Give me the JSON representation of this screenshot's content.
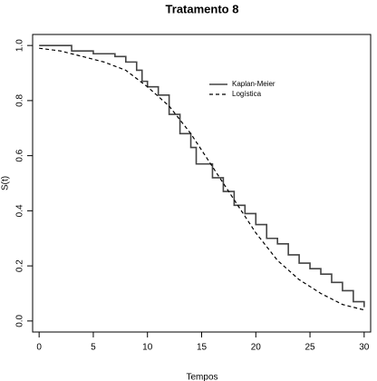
{
  "chart_data": {
    "type": "line",
    "title": "Tratamento 8",
    "x_label": "Tempos",
    "y_label": "S(t)",
    "xlim": [
      -0.6,
      30.6
    ],
    "ylim": [
      -0.04,
      1.04
    ],
    "xticks": [
      0,
      5,
      10,
      15,
      20,
      25,
      30
    ],
    "yticks": [
      {
        "value": 0,
        "label": "0.0"
      },
      {
        "value": 0.2,
        "label": "0.2"
      },
      {
        "value": 0.4,
        "label": "0.4"
      },
      {
        "value": 0.6,
        "label": "0.6"
      },
      {
        "value": 0.8,
        "label": "0.8"
      },
      {
        "value": 1,
        "label": "1.0"
      }
    ],
    "series": [
      {
        "name": "Kaplan-Meier",
        "color": "#444444",
        "style": "step",
        "x": [
          0,
          3,
          5,
          7,
          8,
          9,
          9.5,
          10,
          11,
          12,
          13,
          14,
          14.5,
          16,
          17,
          18,
          19,
          20,
          21,
          22,
          23,
          24,
          25,
          26,
          27,
          28,
          29,
          30
        ],
        "values": [
          1.0,
          0.98,
          0.97,
          0.96,
          0.94,
          0.91,
          0.87,
          0.85,
          0.82,
          0.75,
          0.68,
          0.63,
          0.57,
          0.52,
          0.47,
          0.42,
          0.39,
          0.35,
          0.3,
          0.28,
          0.24,
          0.21,
          0.19,
          0.17,
          0.14,
          0.11,
          0.07,
          0.05
        ]
      },
      {
        "name": "Logística",
        "color": "#000000",
        "style": "dashed",
        "x": [
          0,
          2,
          4,
          6,
          8,
          10,
          12,
          14,
          16,
          18,
          20,
          22,
          24,
          26,
          28,
          30
        ],
        "values": [
          0.99,
          0.98,
          0.96,
          0.94,
          0.91,
          0.85,
          0.78,
          0.68,
          0.56,
          0.44,
          0.32,
          0.22,
          0.15,
          0.1,
          0.06,
          0.04
        ]
      }
    ]
  }
}
